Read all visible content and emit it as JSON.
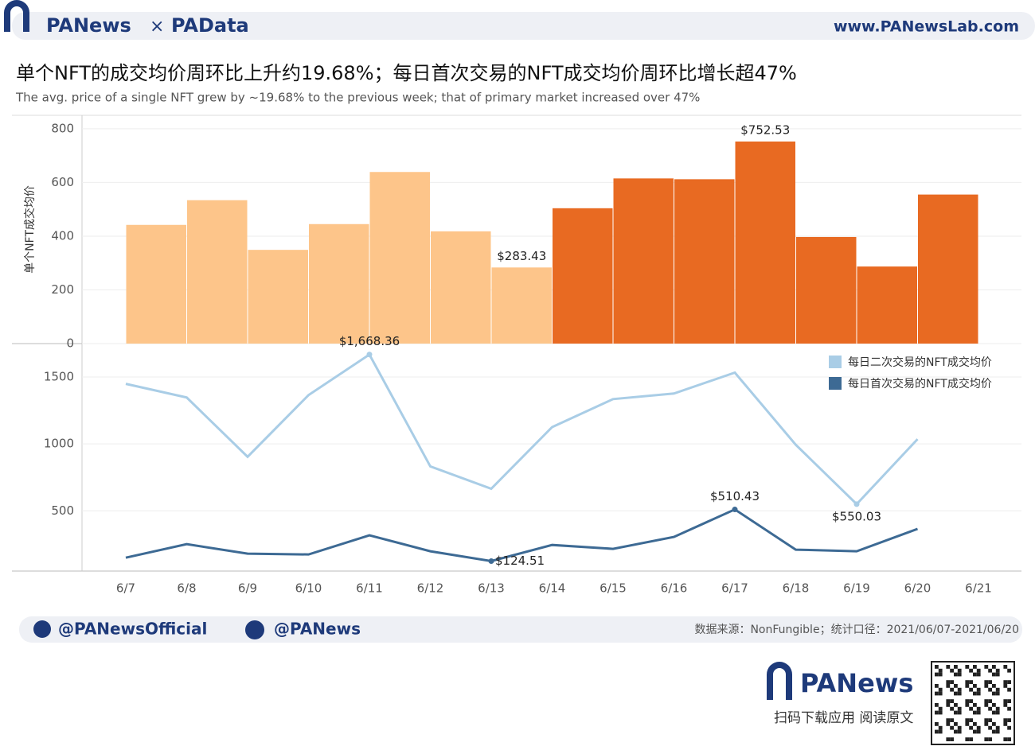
{
  "header": {
    "brand_left": "PANews",
    "times": "×",
    "brand_right": "PAData",
    "url": "www.PANewsLab.com"
  },
  "title": "单个NFT的成交均价周环比上升约19.68%；每日首次交易的NFT成交均价周环比增长超47%",
  "subtitle": "The avg. price of a single NFT grew by ~19.68% to the previous week; that of primary market increased over 47%",
  "chart_data": [
    {
      "type": "bar",
      "y_label": "单个NFT成交均价",
      "categories": [
        "6/7",
        "6/8",
        "6/9",
        "6/10",
        "6/11",
        "6/12",
        "6/13",
        "6/14",
        "6/15",
        "6/16",
        "6/17",
        "6/18",
        "6/19",
        "6/20"
      ],
      "values": [
        442,
        534,
        349,
        445,
        639,
        418,
        283.43,
        504,
        615,
        612,
        752.53,
        397,
        287,
        555
      ],
      "value_labels": [
        null,
        null,
        null,
        null,
        null,
        null,
        "$283.43",
        null,
        null,
        null,
        "$752.53",
        null,
        null,
        null
      ],
      "colors": [
        "#fdc58a",
        "#fdc58a",
        "#fdc58a",
        "#fdc58a",
        "#fdc58a",
        "#fdc58a",
        "#fdc58a",
        "#e86a22",
        "#e86a22",
        "#e86a22",
        "#e86a22",
        "#e86a22",
        "#e86a22",
        "#e86a22"
      ],
      "ylim": [
        0,
        850
      ],
      "yticks": [
        0,
        200,
        400,
        600,
        800
      ],
      "grid": true
    },
    {
      "type": "line",
      "categories": [
        "6/7",
        "6/8",
        "6/9",
        "6/10",
        "6/11",
        "6/12",
        "6/13",
        "6/14",
        "6/15",
        "6/16",
        "6/17",
        "6/18",
        "6/19",
        "6/20",
        "6/21"
      ],
      "series": [
        {
          "name": "每日二次交易的NFT成交均价",
          "color": "#a9cde6",
          "values": [
            1449,
            1347,
            904,
            1365,
            1668.36,
            832,
            665,
            1126,
            1335,
            1377,
            1533,
            994,
            550.03,
            1036,
            null
          ],
          "value_labels": [
            null,
            null,
            null,
            null,
            "$1,668.36",
            null,
            null,
            null,
            null,
            null,
            null,
            null,
            "$550.03",
            null,
            null
          ]
        },
        {
          "name": "每日首次交易的NFT成交均价",
          "color": "#3d6a94",
          "values": [
            150,
            251,
            180,
            174,
            317,
            198,
            124.51,
            245,
            216,
            305,
            510.43,
            210,
            198,
            365,
            null
          ],
          "value_labels": [
            null,
            null,
            null,
            null,
            null,
            null,
            "$124.51",
            null,
            null,
            null,
            "$510.43",
            null,
            null,
            null,
            null
          ]
        }
      ],
      "ylim": [
        50,
        1750
      ],
      "yticks": [
        500,
        1000,
        1500
      ],
      "grid": true,
      "legend": "top-right"
    }
  ],
  "footer": {
    "twitter": "@PANewsOfficial",
    "weibo": "@PANews",
    "source": "数据来源：NonFungible；统计口径：2021/06/07-2021/06/20",
    "logo": "PANews",
    "cta": "扫码下载应用  阅读原文"
  }
}
